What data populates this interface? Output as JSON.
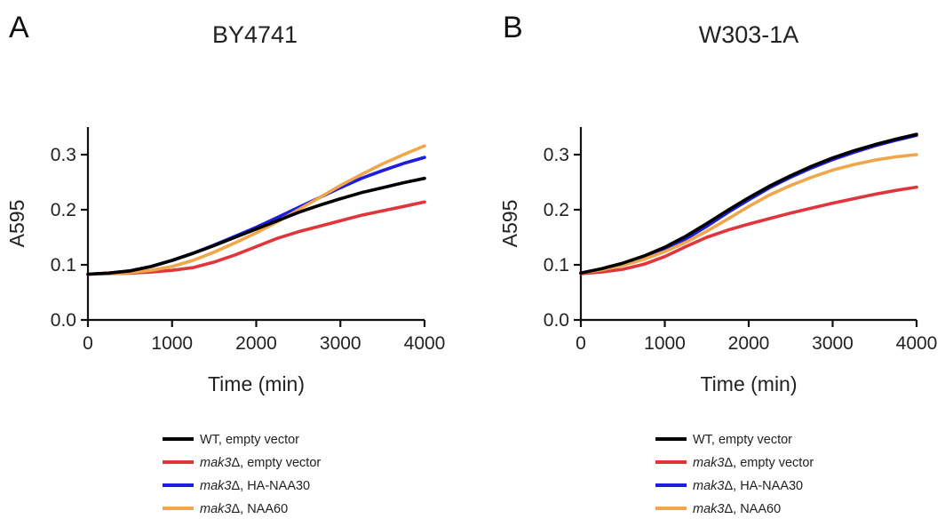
{
  "colors": {
    "wt": "#000000",
    "mak3_empty": "#e0353a",
    "mak3_naa30": "#1d1de0",
    "mak3_naa60": "#f0a64a"
  },
  "chart_data": [
    {
      "type": "line",
      "panel": "A",
      "title": "BY4741",
      "xlabel": "Time (min)",
      "ylabel": "A595",
      "xlim": [
        0,
        4000
      ],
      "ylim": [
        0,
        0.35
      ],
      "xticks": [
        "0",
        "1000",
        "2000",
        "3000",
        "4000"
      ],
      "yticks": [
        "0.0",
        "0.1",
        "0.2",
        "0.3"
      ],
      "x": [
        0,
        250,
        500,
        750,
        1000,
        1250,
        1500,
        1750,
        2000,
        2250,
        2500,
        2750,
        3000,
        3250,
        3500,
        3750,
        4000
      ],
      "series": [
        {
          "name": "WT, empty vector",
          "color_key": "wt",
          "values": [
            0.083,
            0.085,
            0.089,
            0.097,
            0.108,
            0.121,
            0.135,
            0.15,
            0.165,
            0.18,
            0.195,
            0.208,
            0.22,
            0.231,
            0.24,
            0.249,
            0.257
          ]
        },
        {
          "name": "mak3Δ, empty vector",
          "color_key": "mak3_empty",
          "values": [
            0.083,
            0.084,
            0.085,
            0.087,
            0.09,
            0.095,
            0.105,
            0.118,
            0.133,
            0.148,
            0.16,
            0.17,
            0.18,
            0.19,
            0.198,
            0.206,
            0.214
          ]
        },
        {
          "name": "mak3Δ, HA-NAA30",
          "color_key": "mak3_naa30",
          "values": [
            0.083,
            0.085,
            0.089,
            0.097,
            0.108,
            0.121,
            0.136,
            0.152,
            0.168,
            0.186,
            0.204,
            0.222,
            0.24,
            0.257,
            0.271,
            0.284,
            0.295
          ]
        },
        {
          "name": "mak3Δ, NAA60",
          "color_key": "mak3_naa60",
          "values": [
            0.083,
            0.084,
            0.086,
            0.09,
            0.097,
            0.108,
            0.123,
            0.14,
            0.158,
            0.178,
            0.2,
            0.222,
            0.244,
            0.264,
            0.283,
            0.3,
            0.316
          ]
        }
      ]
    },
    {
      "type": "line",
      "panel": "B",
      "title": "W303-1A",
      "xlabel": "Time (min)",
      "ylabel": "A595",
      "xlim": [
        0,
        4000
      ],
      "ylim": [
        0,
        0.35
      ],
      "xticks": [
        "0",
        "1000",
        "2000",
        "3000",
        "4000"
      ],
      "yticks": [
        "0.0",
        "0.1",
        "0.2",
        "0.3"
      ],
      "x": [
        0,
        250,
        500,
        750,
        1000,
        1250,
        1500,
        1750,
        2000,
        2250,
        2500,
        2750,
        3000,
        3250,
        3500,
        3750,
        4000
      ],
      "series": [
        {
          "name": "WT, empty vector",
          "color_key": "wt",
          "values": [
            0.085,
            0.093,
            0.103,
            0.116,
            0.132,
            0.152,
            0.175,
            0.199,
            0.222,
            0.243,
            0.262,
            0.279,
            0.294,
            0.307,
            0.318,
            0.328,
            0.337
          ]
        },
        {
          "name": "mak3Δ, empty vector",
          "color_key": "mak3_empty",
          "values": [
            0.084,
            0.087,
            0.092,
            0.101,
            0.115,
            0.133,
            0.15,
            0.163,
            0.174,
            0.184,
            0.194,
            0.203,
            0.212,
            0.22,
            0.228,
            0.235,
            0.241
          ]
        },
        {
          "name": "mak3Δ, HA-NAA30",
          "color_key": "mak3_naa30",
          "values": [
            0.085,
            0.092,
            0.101,
            0.113,
            0.128,
            0.147,
            0.17,
            0.195,
            0.218,
            0.24,
            0.259,
            0.276,
            0.291,
            0.304,
            0.316,
            0.326,
            0.335
          ]
        },
        {
          "name": "mak3Δ, NAA60",
          "color_key": "mak3_naa60",
          "values": [
            0.085,
            0.091,
            0.099,
            0.11,
            0.124,
            0.141,
            0.161,
            0.183,
            0.206,
            0.227,
            0.244,
            0.259,
            0.272,
            0.282,
            0.29,
            0.296,
            0.3
          ]
        }
      ]
    }
  ],
  "legends": [
    {
      "items": [
        {
          "italic": "",
          "text": "WT, empty vector",
          "color_key": "wt"
        },
        {
          "italic": "mak3",
          "text": "Δ, empty vector",
          "color_key": "mak3_empty"
        },
        {
          "italic": "mak3",
          "text": "Δ, HA-NAA30",
          "color_key": "mak3_naa30"
        },
        {
          "italic": "mak3",
          "text": "Δ, NAA60",
          "color_key": "mak3_naa60"
        }
      ]
    },
    {
      "items": [
        {
          "italic": "",
          "text": "WT, empty vector",
          "color_key": "wt"
        },
        {
          "italic": "mak3",
          "text": "Δ, empty vector",
          "color_key": "mak3_empty"
        },
        {
          "italic": "mak3",
          "text": "Δ, HA-NAA30",
          "color_key": "mak3_naa30"
        },
        {
          "italic": "mak3",
          "text": "Δ, NAA60",
          "color_key": "mak3_naa60"
        }
      ]
    }
  ]
}
